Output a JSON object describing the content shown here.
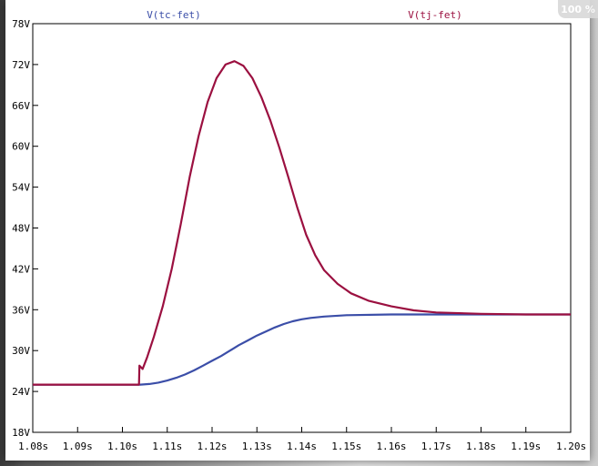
{
  "zoom_badge": "100 %",
  "chart_data": {
    "type": "line",
    "title": "",
    "xlabel": "",
    "ylabel": "",
    "xlim": [
      1.08,
      1.2
    ],
    "ylim": [
      18,
      78
    ],
    "x_ticks": [
      1.08,
      1.09,
      1.1,
      1.11,
      1.12,
      1.13,
      1.14,
      1.15,
      1.16,
      1.17,
      1.18,
      1.19,
      1.2
    ],
    "x_tick_labels": [
      "1.08s",
      "1.09s",
      "1.10s",
      "1.11s",
      "1.12s",
      "1.13s",
      "1.14s",
      "1.15s",
      "1.16s",
      "1.17s",
      "1.18s",
      "1.19s",
      "1.20s"
    ],
    "y_ticks": [
      18,
      24,
      30,
      36,
      42,
      48,
      54,
      60,
      66,
      72,
      78
    ],
    "y_tick_labels": [
      "18V",
      "24V",
      "30V",
      "36V",
      "42V",
      "48V",
      "54V",
      "60V",
      "66V",
      "72V",
      "78V"
    ],
    "grid": false,
    "series": [
      {
        "name": "V(tc-fet)",
        "color": "#3b4ea8",
        "points": [
          [
            1.08,
            25.0
          ],
          [
            1.104,
            25.0
          ],
          [
            1.106,
            25.1
          ],
          [
            1.108,
            25.3
          ],
          [
            1.11,
            25.6
          ],
          [
            1.112,
            26.0
          ],
          [
            1.114,
            26.5
          ],
          [
            1.116,
            27.1
          ],
          [
            1.118,
            27.8
          ],
          [
            1.12,
            28.5
          ],
          [
            1.122,
            29.2
          ],
          [
            1.124,
            30.0
          ],
          [
            1.126,
            30.8
          ],
          [
            1.128,
            31.5
          ],
          [
            1.13,
            32.2
          ],
          [
            1.132,
            32.8
          ],
          [
            1.134,
            33.4
          ],
          [
            1.136,
            33.9
          ],
          [
            1.138,
            34.3
          ],
          [
            1.14,
            34.6
          ],
          [
            1.142,
            34.8
          ],
          [
            1.145,
            35.0
          ],
          [
            1.15,
            35.2
          ],
          [
            1.16,
            35.3
          ],
          [
            1.17,
            35.3
          ],
          [
            1.18,
            35.3
          ],
          [
            1.19,
            35.3
          ],
          [
            1.2,
            35.3
          ]
        ]
      },
      {
        "name": "V(tj-fet)",
        "color": "#9b1040",
        "points": [
          [
            1.08,
            25.0
          ],
          [
            1.1037,
            25.0
          ],
          [
            1.1038,
            27.8
          ],
          [
            1.1045,
            27.3
          ],
          [
            1.1055,
            29.0
          ],
          [
            1.107,
            32.0
          ],
          [
            1.109,
            36.5
          ],
          [
            1.111,
            42.0
          ],
          [
            1.113,
            48.5
          ],
          [
            1.115,
            55.5
          ],
          [
            1.117,
            61.5
          ],
          [
            1.119,
            66.5
          ],
          [
            1.121,
            70.0
          ],
          [
            1.123,
            72.0
          ],
          [
            1.125,
            72.5
          ],
          [
            1.127,
            71.8
          ],
          [
            1.129,
            70.0
          ],
          [
            1.131,
            67.2
          ],
          [
            1.133,
            63.8
          ],
          [
            1.135,
            59.8
          ],
          [
            1.137,
            55.5
          ],
          [
            1.139,
            51.0
          ],
          [
            1.141,
            47.0
          ],
          [
            1.143,
            44.0
          ],
          [
            1.145,
            41.8
          ],
          [
            1.148,
            39.8
          ],
          [
            1.151,
            38.4
          ],
          [
            1.155,
            37.3
          ],
          [
            1.16,
            36.5
          ],
          [
            1.165,
            35.9
          ],
          [
            1.17,
            35.6
          ],
          [
            1.18,
            35.4
          ],
          [
            1.19,
            35.3
          ],
          [
            1.2,
            35.3
          ]
        ]
      }
    ]
  }
}
